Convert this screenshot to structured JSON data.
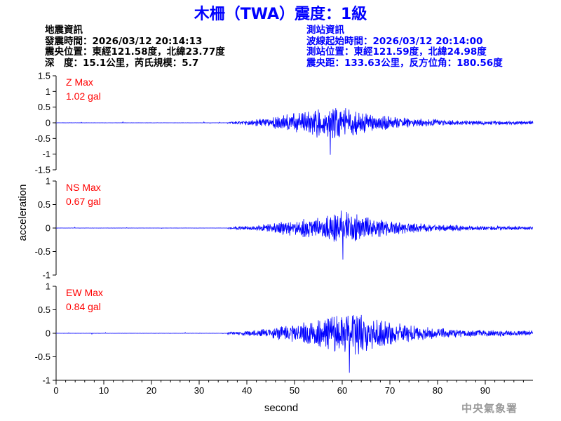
{
  "title": "木柵（TWA）震度：1級",
  "quake_info": {
    "heading": "地震資訊",
    "time": "發震時間：2026/03/12 20:14:13",
    "location": "震央位置：東經121.58度，北緯23.77度",
    "depth": "深　度：15.1公里，芮氏規模：5.7"
  },
  "station_info": {
    "heading": "測站資訊",
    "wave_start": "波線起始時間：2026/03/12 20:14:00",
    "location": "測站位置：東經121.59度，北緯24.98度",
    "distance": "震央距：133.63公里，反方位角：180.56度"
  },
  "watermark": "中央氣象署",
  "chart_data": {
    "type": "line",
    "xlabel": "second",
    "ylabel": "acceleration",
    "xlim": [
      0,
      100
    ],
    "xticks": [
      0,
      10,
      20,
      30,
      40,
      50,
      60,
      70,
      80,
      90
    ],
    "line_color": "#0000ff",
    "label_color": "#ff0000",
    "components": [
      {
        "label_line1": "Z Max",
        "label_line2": "1.02 gal",
        "max": 1.02,
        "ylim": [
          -1.5,
          1.5
        ],
        "yticks": [
          "1.5",
          "1",
          "0.5",
          "0",
          "-0.5",
          "-1",
          "-1.5"
        ],
        "signal_onset": 36,
        "peak_time": 58
      },
      {
        "label_line1": "NS Max",
        "label_line2": "0.67 gal",
        "max": 0.67,
        "ylim": [
          -1,
          1
        ],
        "yticks": [
          "1",
          "0.5",
          "0",
          "-0.5",
          "-1"
        ],
        "signal_onset": 36,
        "peak_time": 60
      },
      {
        "label_line1": "EW Max",
        "label_line2": "0.84 gal",
        "max": 0.84,
        "ylim": [
          -1,
          1
        ],
        "yticks": [
          "1",
          "0.5",
          "0",
          "-0.5",
          "-1"
        ],
        "signal_onset": 36,
        "peak_time": 63
      }
    ]
  }
}
